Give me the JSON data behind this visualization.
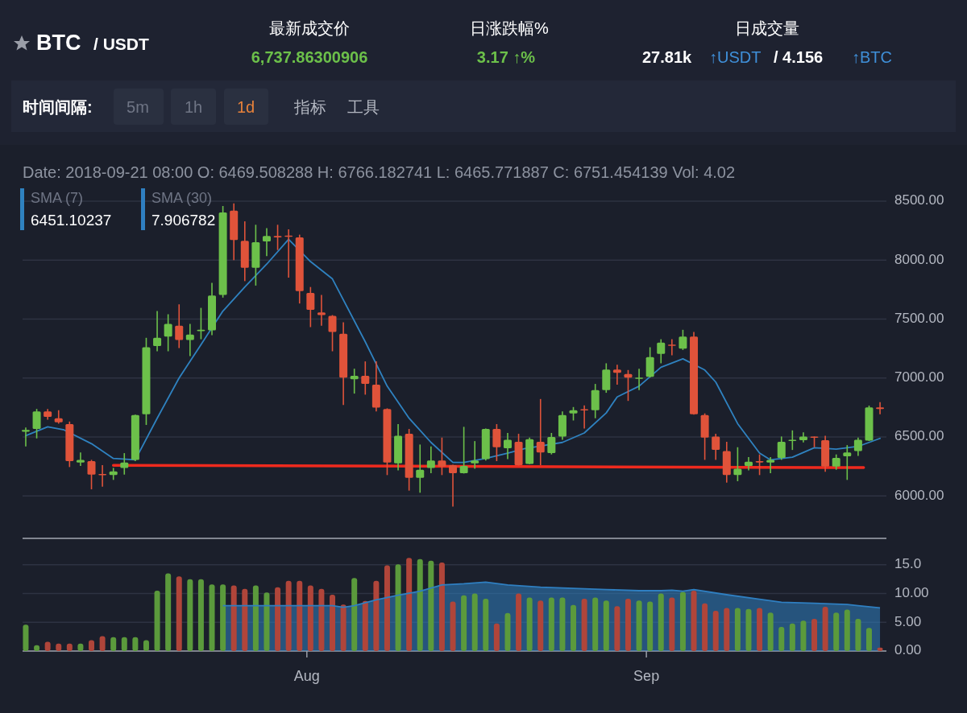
{
  "chart_data": [
    {
      "type": "other",
      "title": "BTC",
      "subtitle": "/ USDT",
      "annotations": [
        "最新成交价",
        "6,737.86300906",
        "日涨跌幅%",
        "3.17 ↑%",
        "日成交量",
        "27.81k",
        "↑USDT",
        "/ 4.156",
        "↑BTC",
        "时间间隔:",
        "5m",
        "1h",
        "1d",
        "指标",
        "工具"
      ]
    },
    {
      "type": "candlestick",
      "annotations": [
        "Date: 2018-09-21 08:00 O: 6469.508288 H: 6766.182741 L: 6465.771887 C: 6751.454139 Vol: 4.02",
        "6451.10237"
      ],
      "x": [
        "2018-07-06T08:00",
        "2018-07-07T08:00",
        "2018-07-08T08:00",
        "2018-07-09T08:00",
        "2018-07-10T08:00",
        "2018-07-11T08:00",
        "2018-07-12T08:00",
        "2018-07-13T08:00",
        "2018-07-14T08:00",
        "2018-07-15T08:00",
        "2018-07-16T08:00",
        "2018-07-17T08:00",
        "2018-07-18T08:00",
        "2018-07-19T08:00",
        "2018-07-20T08:00",
        "2018-07-21T08:00",
        "2018-07-22T08:00",
        "2018-07-23T08:00",
        "2018-07-24T08:00",
        "2018-07-25T08:00",
        "2018-07-26T08:00",
        "2018-07-27T08:00",
        "2018-07-28T08:00",
        "2018-07-29T08:00",
        "2018-07-30T08:00",
        "2018-07-31T08:00",
        "2018-08-01T08:00",
        "2018-08-02T08:00",
        "2018-08-03T08:00",
        "2018-08-04T08:00",
        "2018-08-05T08:00",
        "2018-08-06T08:00",
        "2018-08-07T08:00",
        "2018-08-08T08:00",
        "2018-08-09T08:00",
        "2018-08-10T08:00",
        "2018-08-11T08:00",
        "2018-08-12T08:00",
        "2018-08-13T08:00",
        "2018-08-14T08:00",
        "2018-08-15T08:00",
        "2018-08-16T08:00",
        "2018-08-17T08:00",
        "2018-08-18T08:00",
        "2018-08-19T08:00",
        "2018-08-20T08:00",
        "2018-08-21T08:00",
        "2018-08-22T08:00",
        "2018-08-23T08:00",
        "2018-08-24T08:00",
        "2018-08-25T08:00",
        "2018-08-26T08:00",
        "2018-08-27T08:00",
        "2018-08-28T08:00",
        "2018-08-29T08:00",
        "2018-08-30T08:00",
        "2018-08-31T08:00",
        "2018-09-01T08:00",
        "2018-09-02T08:00",
        "2018-09-03T08:00",
        "2018-09-04T08:00",
        "2018-09-05T08:00",
        "2018-09-06T08:00",
        "2018-09-07T08:00",
        "2018-09-08T08:00",
        "2018-09-09T08:00",
        "2018-09-10T08:00",
        "2018-09-11T08:00",
        "2018-09-12T08:00",
        "2018-09-13T08:00",
        "2018-09-14T08:00",
        "2018-09-15T08:00",
        "2018-09-16T08:00",
        "2018-09-17T08:00",
        "2018-09-18T08:00",
        "2018-09-19T08:00",
        "2018-09-20T08:00",
        "2018-09-21T08:00",
        "2018-09-22T08:00"
      ],
      "ohlc": [
        [
          6545,
          6580,
          6420,
          6560
        ],
        [
          6568,
          6738,
          6488,
          6716
        ],
        [
          6716,
          6738,
          6647,
          6670
        ],
        [
          6659,
          6727,
          6613,
          6625
        ],
        [
          6609,
          6631,
          6245,
          6295
        ],
        [
          6284,
          6368,
          6254,
          6306
        ],
        [
          6295,
          6306,
          6056,
          6181
        ],
        [
          6186,
          6261,
          6079,
          6175
        ],
        [
          6177,
          6238,
          6136,
          6209
        ],
        [
          6238,
          6363,
          6181,
          6284
        ],
        [
          6306,
          6690,
          6295,
          6686
        ],
        [
          6693,
          7341,
          6602,
          7261
        ],
        [
          7272,
          7568,
          7227,
          7341
        ],
        [
          7352,
          7541,
          7227,
          7459
        ],
        [
          7443,
          7625,
          7254,
          7322
        ],
        [
          7322,
          7459,
          7186,
          7368
        ],
        [
          7400,
          7595,
          7329,
          7409
        ],
        [
          7404,
          7807,
          7363,
          7700
        ],
        [
          7704,
          8459,
          7682,
          8404
        ],
        [
          8420,
          8482,
          8000,
          8170
        ],
        [
          8163,
          8329,
          7822,
          7936
        ],
        [
          7936,
          8300,
          7784,
          8152
        ],
        [
          8159,
          8272,
          8034,
          8204
        ],
        [
          8204,
          8300,
          8086,
          8195
        ],
        [
          8209,
          8261,
          7852,
          8200
        ],
        [
          8193,
          8216,
          7632,
          7738
        ],
        [
          7722,
          7772,
          7432,
          7579
        ],
        [
          7557,
          7704,
          7443,
          7534
        ],
        [
          7527,
          7534,
          7227,
          7391
        ],
        [
          7375,
          7473,
          6772,
          7004
        ],
        [
          6990,
          7079,
          6868,
          7018
        ],
        [
          7018,
          7141,
          6859,
          6950
        ],
        [
          6943,
          7141,
          6716,
          6750
        ],
        [
          6738,
          6743,
          6177,
          6284
        ],
        [
          6277,
          6609,
          6216,
          6511
        ],
        [
          6527,
          6568,
          6045,
          6154
        ],
        [
          6154,
          6436,
          6027,
          6222
        ],
        [
          6238,
          6420,
          6193,
          6300
        ],
        [
          6300,
          6495,
          6177,
          6250
        ],
        [
          6261,
          6265,
          5909,
          6193
        ],
        [
          6193,
          6586,
          6190,
          6254
        ],
        [
          6277,
          6465,
          6231,
          6300
        ],
        [
          6313,
          6572,
          6300,
          6568
        ],
        [
          6568,
          6609,
          6295,
          6413
        ],
        [
          6404,
          6534,
          6313,
          6477
        ],
        [
          6459,
          6527,
          6258,
          6261
        ],
        [
          6272,
          6495,
          6270,
          6481
        ],
        [
          6459,
          6822,
          6261,
          6368
        ],
        [
          6363,
          6534,
          6352,
          6500
        ],
        [
          6504,
          6716,
          6477,
          6686
        ],
        [
          6700,
          6754,
          6640,
          6727
        ],
        [
          6736,
          6768,
          6572,
          6727
        ],
        [
          6727,
          6950,
          6659,
          6897
        ],
        [
          6897,
          7125,
          6875,
          7072
        ],
        [
          7072,
          7113,
          6943,
          7045
        ],
        [
          7034,
          7068,
          6806,
          7004
        ],
        [
          6995,
          7079,
          6897,
          7004
        ],
        [
          7011,
          7261,
          7005,
          7177
        ],
        [
          7204,
          7329,
          7125,
          7300
        ],
        [
          7284,
          7329,
          7193,
          7277
        ],
        [
          7250,
          7409,
          7238,
          7352
        ],
        [
          7352,
          7391,
          6690,
          6693
        ],
        [
          6686,
          6700,
          6306,
          6495
        ],
        [
          6504,
          6527,
          6306,
          6390
        ],
        [
          6381,
          6459,
          6113,
          6177
        ],
        [
          6177,
          6413,
          6125,
          6231
        ],
        [
          6254,
          6329,
          6216,
          6290
        ],
        [
          6295,
          6352,
          6177,
          6290
        ],
        [
          6284,
          6329,
          6193,
          6306
        ],
        [
          6322,
          6504,
          6306,
          6459
        ],
        [
          6472,
          6556,
          6390,
          6477
        ],
        [
          6472,
          6540,
          6454,
          6504
        ],
        [
          6504,
          6504,
          6413,
          6495
        ],
        [
          6472,
          6511,
          6204,
          6250
        ],
        [
          6250,
          6352,
          6222,
          6322
        ],
        [
          6336,
          6431,
          6136,
          6368
        ],
        [
          6381,
          6495,
          6340,
          6477
        ],
        [
          6469.51,
          6766.18,
          6465.77,
          6751.45
        ],
        [
          6751,
          6795,
          6693,
          6737.86
        ]
      ],
      "colors": [
        "#6cc04a",
        "#6cc04a",
        "#e0533a",
        "#e0533a",
        "#e0533a",
        "#6cc04a",
        "#e0533a",
        "#e0533a",
        "#6cc04a",
        "#6cc04a",
        "#6cc04a",
        "#6cc04a",
        "#6cc04a",
        "#6cc04a",
        "#e0533a",
        "#6cc04a",
        "#6cc04a",
        "#6cc04a",
        "#6cc04a",
        "#e0533a",
        "#e0533a",
        "#6cc04a",
        "#6cc04a",
        "#e0533a",
        "#e0533a",
        "#e0533a",
        "#e0533a",
        "#e0533a",
        "#e0533a",
        "#e0533a",
        "#6cc04a",
        "#e0533a",
        "#e0533a",
        "#e0533a",
        "#6cc04a",
        "#e0533a",
        "#6cc04a",
        "#6cc04a",
        "#e0533a",
        "#e0533a",
        "#6cc04a",
        "#6cc04a",
        "#6cc04a",
        "#e0533a",
        "#6cc04a",
        "#e0533a",
        "#6cc04a",
        "#e0533a",
        "#6cc04a",
        "#6cc04a",
        "#6cc04a",
        "#e0533a",
        "#6cc04a",
        "#6cc04a",
        "#e0533a",
        "#e0533a",
        "#6cc04a",
        "#6cc04a",
        "#6cc04a",
        "#e0533a",
        "#6cc04a",
        "#e0533a",
        "#e0533a",
        "#e0533a",
        "#e0533a",
        "#6cc04a",
        "#6cc04a",
        "#e0533a",
        "#6cc04a",
        "#6cc04a",
        "#6cc04a",
        "#6cc04a",
        "#e0533a",
        "#e0533a",
        "#6cc04a",
        "#6cc04a",
        "#6cc04a",
        "#6cc04a",
        "#e0533a"
      ],
      "series": [
        {
          "type": "line",
          "name": "SMA (7)",
          "color": "#2f82c0",
          "x": [
            "2018-07-06T08:00",
            "2018-07-08T08:00",
            "2018-07-09T20:00",
            "2018-07-12T08:00",
            "2018-07-14T08:00",
            "2018-07-16T08:00",
            "2018-07-18T08:00",
            "2018-07-20T08:00",
            "2018-07-22T08:00",
            "2018-07-24T08:00",
            "2018-07-26T08:00",
            "2018-07-28T08:00",
            "2018-07-30T08:00",
            "2018-08-01T08:00",
            "2018-08-03T08:00",
            "2018-08-06T08:00",
            "2018-08-08T08:00",
            "2018-08-10T08:00",
            "2018-08-12T08:00",
            "2018-08-14T08:00",
            "2018-08-15T08:00",
            "2018-08-17T08:00",
            "2018-08-19T08:00",
            "2018-08-20T20:00",
            "2018-08-24T08:00",
            "2018-08-26T08:00",
            "2018-08-28T08:00",
            "2018-08-29T08:00",
            "2018-08-31T08:00",
            "2018-09-02T08:00",
            "2018-09-04T08:00",
            "2018-09-06T08:00",
            "2018-09-07T08:00",
            "2018-09-09T08:00",
            "2018-09-11T08:00",
            "2018-09-12T08:00",
            "2018-09-14T08:00",
            "2018-09-16T08:00",
            "2018-09-18T08:00",
            "2018-09-20T08:00",
            "2018-09-22T08:00"
          ],
          "values": [
            6511,
            6586,
            6560,
            6443,
            6318,
            6306,
            6659,
            7000,
            7284,
            7568,
            7772,
            7966,
            8177,
            7988,
            7841,
            7307,
            6931,
            6659,
            6454,
            6284,
            6284,
            6318,
            6363,
            6400,
            6454,
            6534,
            6704,
            6840,
            6931,
            7091,
            7163,
            7068,
            6966,
            6613,
            6363,
            6306,
            6329,
            6409,
            6397,
            6420,
            6488
          ]
        },
        {
          "type": "line",
          "color": "#ef2a1e",
          "x": [
            "2018-07-14T08:00",
            "2018-09-20T20:00"
          ],
          "values": [
            6260,
            6240
          ]
        }
      ],
      "xlim": [
        "2018-07-06T01:00",
        "2018-09-22T22:00"
      ],
      "ylim": [
        5640,
        8500
      ],
      "yticks": [
        {
          "value": 6000,
          "label": "6000.00"
        },
        {
          "value": 6500,
          "label": "6500.00"
        },
        {
          "value": 7000,
          "label": "7000.00"
        },
        {
          "value": 7500,
          "label": "7500.00"
        },
        {
          "value": 8000,
          "label": "8000.00"
        },
        {
          "value": 8500,
          "label": "8500.00"
        }
      ],
      "grid": "y",
      "legend": "top left",
      "tick_labels": "y"
    },
    {
      "type": "bar",
      "annotations": [
        "7.906782"
      ],
      "x": [
        "2018-07-06T08:00",
        "2018-07-07T08:00",
        "2018-07-08T08:00",
        "2018-07-09T08:00",
        "2018-07-10T08:00",
        "2018-07-11T08:00",
        "2018-07-12T08:00",
        "2018-07-13T08:00",
        "2018-07-14T08:00",
        "2018-07-15T08:00",
        "2018-07-16T08:00",
        "2018-07-17T08:00",
        "2018-07-18T08:00",
        "2018-07-19T08:00",
        "2018-07-20T08:00",
        "2018-07-21T08:00",
        "2018-07-22T08:00",
        "2018-07-23T08:00",
        "2018-07-24T08:00",
        "2018-07-25T08:00",
        "2018-07-26T08:00",
        "2018-07-27T08:00",
        "2018-07-28T08:00",
        "2018-07-29T08:00",
        "2018-07-30T08:00",
        "2018-07-31T08:00",
        "2018-08-01T08:00",
        "2018-08-02T08:00",
        "2018-08-03T08:00",
        "2018-08-04T08:00",
        "2018-08-05T08:00",
        "2018-08-06T08:00",
        "2018-08-07T08:00",
        "2018-08-08T08:00",
        "2018-08-09T08:00",
        "2018-08-10T08:00",
        "2018-08-11T08:00",
        "2018-08-12T08:00",
        "2018-08-13T08:00",
        "2018-08-14T08:00",
        "2018-08-15T08:00",
        "2018-08-16T08:00",
        "2018-08-17T08:00",
        "2018-08-18T08:00",
        "2018-08-19T08:00",
        "2018-08-20T08:00",
        "2018-08-21T08:00",
        "2018-08-22T08:00",
        "2018-08-23T08:00",
        "2018-08-24T08:00",
        "2018-08-25T08:00",
        "2018-08-26T08:00",
        "2018-08-27T08:00",
        "2018-08-28T08:00",
        "2018-08-29T08:00",
        "2018-08-30T08:00",
        "2018-08-31T08:00",
        "2018-09-01T08:00",
        "2018-09-02T08:00",
        "2018-09-03T08:00",
        "2018-09-04T08:00",
        "2018-09-05T08:00",
        "2018-09-06T08:00",
        "2018-09-07T08:00",
        "2018-09-08T08:00",
        "2018-09-09T08:00",
        "2018-09-10T08:00",
        "2018-09-11T08:00",
        "2018-09-12T08:00",
        "2018-09-13T08:00",
        "2018-09-14T08:00",
        "2018-09-15T08:00",
        "2018-09-16T08:00",
        "2018-09-17T08:00",
        "2018-09-18T08:00",
        "2018-09-19T08:00",
        "2018-09-20T08:00",
        "2018-09-21T08:00",
        "2018-09-22T08:00"
      ],
      "values": [
        4.6,
        1.0,
        1.6,
        1.3,
        1.3,
        1.3,
        1.9,
        2.6,
        2.4,
        2.4,
        2.4,
        1.9,
        10.5,
        13.5,
        13.0,
        12.5,
        12.5,
        11.6,
        11.6,
        11.4,
        10.8,
        11.4,
        10.2,
        11.1,
        12.2,
        12.2,
        11.4,
        10.8,
        9.8,
        8.1,
        12.7,
        8.7,
        12.2,
        14.9,
        15.1,
        16.2,
        16.0,
        15.7,
        15.4,
        8.6,
        9.7,
        10.0,
        9.1,
        4.8,
        6.6,
        10.0,
        9.3,
        8.8,
        9.3,
        9.3,
        8.0,
        9.1,
        9.3,
        8.8,
        7.8,
        9.1,
        8.8,
        8.6,
        10.0,
        9.3,
        10.3,
        10.5,
        8.3,
        7.0,
        7.5,
        7.5,
        7.3,
        7.5,
        6.7,
        4.2,
        4.8,
        5.3,
        5.6,
        7.7,
        6.7,
        7.2,
        5.6,
        4.02,
        0.6
      ],
      "colors": [
        "#5b9a3c",
        "#5b9a3c",
        "#b0453a",
        "#b0453a",
        "#b0453a",
        "#5b9a3c",
        "#b0453a",
        "#b0453a",
        "#5b9a3c",
        "#5b9a3c",
        "#5b9a3c",
        "#5b9a3c",
        "#5b9a3c",
        "#5b9a3c",
        "#b0453a",
        "#5b9a3c",
        "#5b9a3c",
        "#5b9a3c",
        "#5b9a3c",
        "#b0453a",
        "#b0453a",
        "#5b9a3c",
        "#5b9a3c",
        "#b0453a",
        "#b0453a",
        "#b0453a",
        "#b0453a",
        "#b0453a",
        "#b0453a",
        "#b0453a",
        "#5b9a3c",
        "#b0453a",
        "#b0453a",
        "#b0453a",
        "#5b9a3c",
        "#b0453a",
        "#5b9a3c",
        "#5b9a3c",
        "#b0453a",
        "#b0453a",
        "#5b9a3c",
        "#5b9a3c",
        "#5b9a3c",
        "#b0453a",
        "#5b9a3c",
        "#b0453a",
        "#5b9a3c",
        "#b0453a",
        "#5b9a3c",
        "#5b9a3c",
        "#5b9a3c",
        "#b0453a",
        "#5b9a3c",
        "#5b9a3c",
        "#b0453a",
        "#b0453a",
        "#5b9a3c",
        "#5b9a3c",
        "#5b9a3c",
        "#b0453a",
        "#5b9a3c",
        "#b0453a",
        "#b0453a",
        "#b0453a",
        "#b0453a",
        "#5b9a3c",
        "#5b9a3c",
        "#b0453a",
        "#5b9a3c",
        "#5b9a3c",
        "#5b9a3c",
        "#5b9a3c",
        "#b0453a",
        "#b0453a",
        "#5b9a3c",
        "#5b9a3c",
        "#5b9a3c",
        "#5b9a3c",
        "#b0453a"
      ],
      "series": [
        {
          "type": "area",
          "name": "SMA (30)",
          "color": "#2f7fc1",
          "x": [
            "2018-07-24T08:00",
            "2018-07-28T08:00",
            "2018-08-01T08:00",
            "2018-08-03T08:00",
            "2018-08-04T08:00",
            "2018-08-05T08:00",
            "2018-08-07T08:00",
            "2018-08-09T08:00",
            "2018-08-11T08:00",
            "2018-08-13T08:00",
            "2018-08-15T08:00",
            "2018-08-17T08:00",
            "2018-08-19T08:00",
            "2018-08-22T08:00",
            "2018-08-25T08:00",
            "2018-08-28T08:00",
            "2018-08-31T08:00",
            "2018-09-02T08:00",
            "2018-09-03T08:00",
            "2018-09-04T08:00",
            "2018-09-05T08:00",
            "2018-09-08T08:00",
            "2018-09-11T08:00",
            "2018-09-13T08:00",
            "2018-09-16T08:00",
            "2018-09-19T08:00",
            "2018-09-20T08:00",
            "2018-09-22T08:00"
          ],
          "values": [
            7.9,
            7.9,
            7.9,
            7.9,
            7.6,
            7.9,
            8.9,
            9.7,
            10.4,
            11.5,
            11.7,
            12.0,
            11.5,
            11.1,
            10.9,
            10.7,
            10.5,
            10.5,
            10.6,
            10.4,
            10.7,
            9.8,
            9.0,
            8.5,
            8.3,
            8.1,
            7.9,
            7.5
          ]
        }
      ],
      "xlim": [
        "2018-07-06T01:00",
        "2018-09-22T22:00"
      ],
      "xticks": [
        {
          "value": "2018-08-01",
          "label": "Aug"
        },
        {
          "value": "2018-09-01",
          "label": "Sep"
        }
      ],
      "ylim": [
        0,
        19.6
      ],
      "yticks": [
        {
          "value": 0,
          "label": "0.00"
        },
        {
          "value": 5,
          "label": "5.00"
        },
        {
          "value": 10,
          "label": "10.00"
        },
        {
          "value": 15,
          "label": "15.0"
        }
      ],
      "grid": "y",
      "legend": "top left"
    }
  ]
}
